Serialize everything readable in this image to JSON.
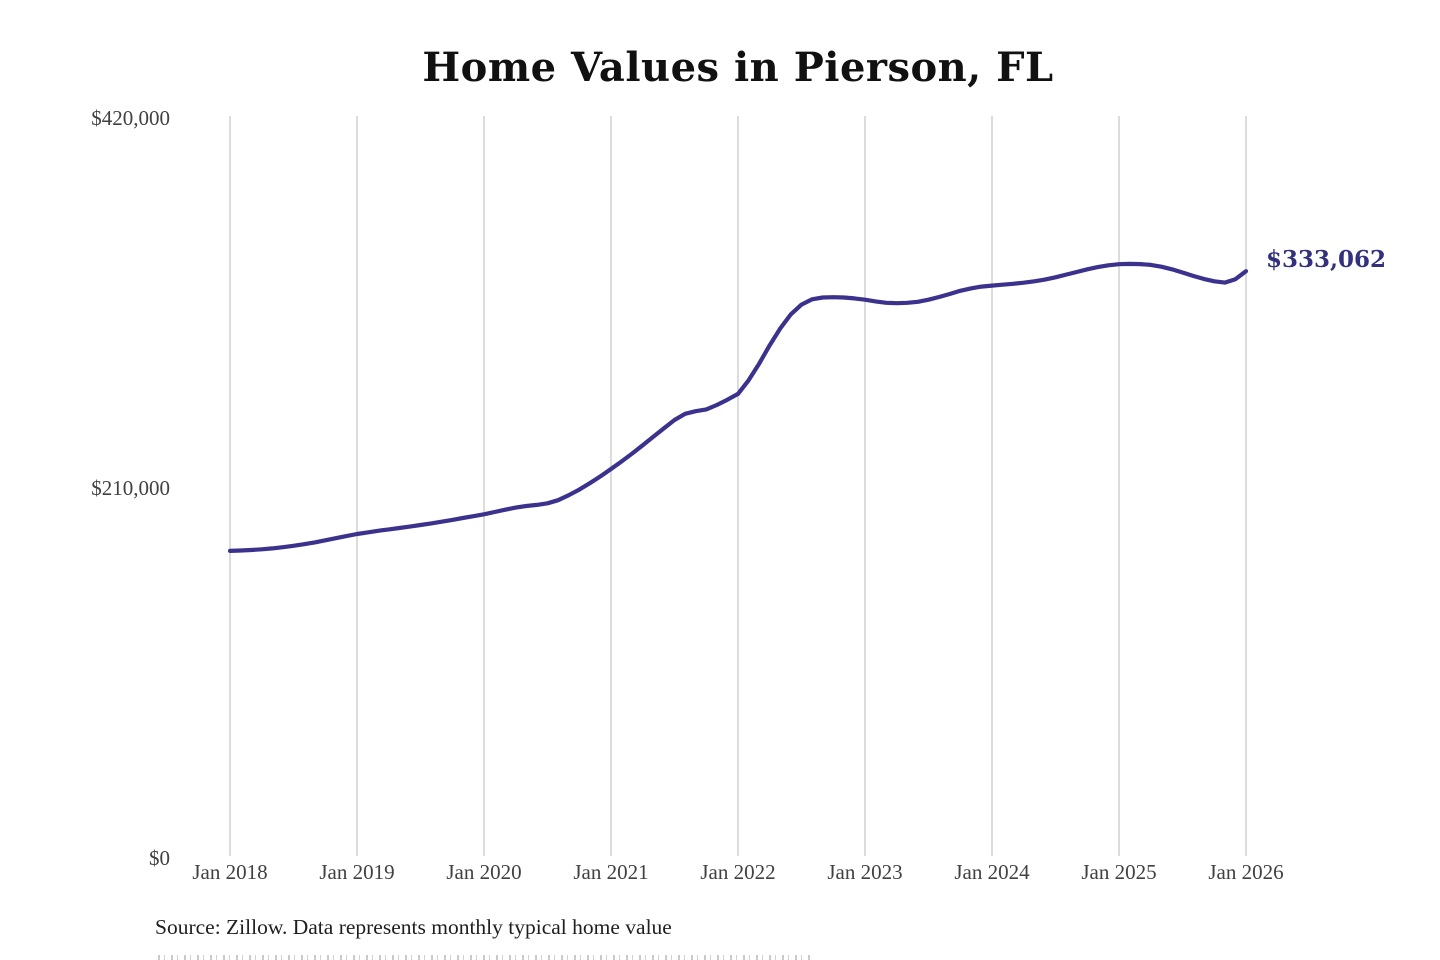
{
  "source_note": "Source: Zillow. Data represents monthly typical home value",
  "colors": {
    "line": "#3a328c",
    "end_label_text": "#33307e",
    "grid": "#cacaca",
    "axis_text": "#414141",
    "title_text": "#111111",
    "source_text": "#1e1e1e",
    "background": "#ffffff"
  },
  "chart_data": {
    "type": "line",
    "title": "Home Values in Pierson, FL",
    "xlabel": "",
    "ylabel": "",
    "ylim": [
      0,
      420000
    ],
    "grid": "vertical-only",
    "legend": "none",
    "x_start": "Jan 2018",
    "x_end": "Jan 2026",
    "frequency": "monthly",
    "x_ticks": [
      {
        "label": "Jan 2018",
        "month_index": 0
      },
      {
        "label": "Jan 2019",
        "month_index": 12
      },
      {
        "label": "Jan 2020",
        "month_index": 24
      },
      {
        "label": "Jan 2021",
        "month_index": 36
      },
      {
        "label": "Jan 2022",
        "month_index": 48
      },
      {
        "label": "Jan 2023",
        "month_index": 60
      },
      {
        "label": "Jan 2024",
        "month_index": 72
      },
      {
        "label": "Jan 2025",
        "month_index": 84
      },
      {
        "label": "Jan 2026",
        "month_index": 96
      }
    ],
    "y_ticks": [
      {
        "label": "$420,000",
        "value": 420000
      },
      {
        "label": "$210,000",
        "value": 210000
      },
      {
        "label": "$0",
        "value": 0
      }
    ],
    "end_label": "$333,062",
    "end_value": 333062,
    "series": [
      {
        "name": "Monthly typical home value",
        "values": [
          174300,
          174500,
          174800,
          175200,
          175700,
          176400,
          177200,
          178100,
          179100,
          180300,
          181500,
          182700,
          183900,
          184800,
          185700,
          186500,
          187300,
          188100,
          189000,
          189900,
          190900,
          191900,
          193000,
          194000,
          195100,
          196400,
          197700,
          198900,
          199800,
          200400,
          201300,
          203100,
          205900,
          209100,
          212700,
          216600,
          220800,
          225100,
          229600,
          234300,
          239100,
          243900,
          248600,
          252100,
          253600,
          254600,
          257100,
          260100,
          263400,
          271100,
          280600,
          291100,
          300600,
          308600,
          314100,
          317100,
          318100,
          318300,
          318100,
          317600,
          316900,
          315900,
          315100,
          314900,
          315100,
          315700,
          316900,
          318400,
          320100,
          321900,
          323300,
          324300,
          324900,
          325400,
          325900,
          326500,
          327300,
          328300,
          329600,
          331100,
          332600,
          334100,
          335400,
          336400,
          337000,
          337200,
          337100,
          336600,
          335600,
          334100,
          332300,
          330400,
          328700,
          327300,
          326600,
          328500,
          333062
        ]
      }
    ]
  }
}
